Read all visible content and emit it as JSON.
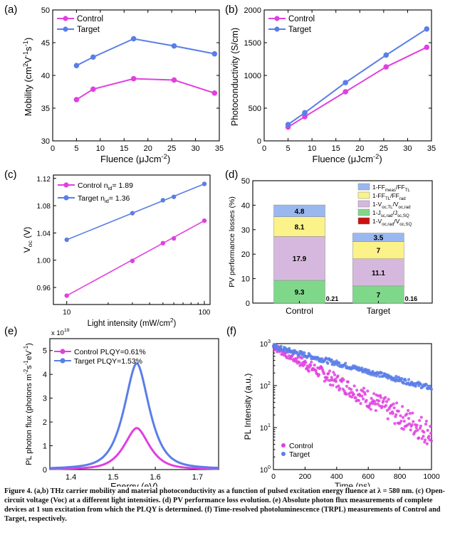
{
  "caption": "Figure 4. (a,b) THz carrier mobility and material photoconductivity as a function of pulsed excitation energy fluence at λ = 580 nm. (c) Open-circuit voltage (Voc) at a different light intensities. (d) PV performance loss evolution. (e) Absolute photon flux measurements of complete devices at 1 sun excitation from which the PLQY is determined. (f) Time-resolved photoluminescence (TRPL) measurements of Control and Target, respectively.",
  "colors": {
    "control": "#e040e0",
    "target": "#5a7ee8"
  },
  "chart_data": [
    {
      "panel": "(a)",
      "type": "line",
      "xlabel": "Fluence (μJcm⁻²)",
      "ylabel": "Mobility (cm²V⁻¹s⁻¹)",
      "xlim": [
        0,
        35
      ],
      "ylim": [
        30,
        50
      ],
      "xticks": [
        "0",
        "5",
        "10",
        "15",
        "20",
        "25",
        "30",
        "35"
      ],
      "yticks": [
        "30",
        "35",
        "40",
        "45",
        "50"
      ],
      "legend": "top-left",
      "series": [
        {
          "name": "Control",
          "x": [
            5,
            8.5,
            17,
            25.5,
            34
          ],
          "y": [
            36.3,
            37.9,
            39.5,
            39.3,
            37.3
          ]
        },
        {
          "name": "Target",
          "x": [
            5,
            8.5,
            17,
            25.5,
            34
          ],
          "y": [
            41.5,
            42.8,
            45.6,
            44.5,
            43.3
          ]
        }
      ]
    },
    {
      "panel": "(b)",
      "type": "line",
      "xlabel": "Fluence (μJcm⁻²)",
      "ylabel": "Photoconductivity (S/cm)",
      "xlim": [
        0,
        35
      ],
      "ylim": [
        0,
        2000
      ],
      "xticks": [
        "0",
        "5",
        "10",
        "15",
        "20",
        "25",
        "30",
        "35"
      ],
      "yticks": [
        "0",
        "500",
        "1000",
        "1500",
        "2000"
      ],
      "legend": "top-left",
      "series": [
        {
          "name": "Control",
          "x": [
            5,
            8.5,
            17,
            25.5,
            34
          ],
          "y": [
            210,
            370,
            750,
            1130,
            1430
          ]
        },
        {
          "name": "Target",
          "x": [
            5,
            8.5,
            17,
            25.5,
            34
          ],
          "y": [
            250,
            430,
            890,
            1310,
            1710
          ]
        }
      ]
    },
    {
      "panel": "(c)",
      "type": "line",
      "xlabel": "Light intensity (mW/cm²)",
      "ylabel": "Voc (V)",
      "xscale": "log",
      "xlim": [
        8,
        110
      ],
      "ylim": [
        0.935,
        1.125
      ],
      "xticks": [
        "10",
        "100"
      ],
      "yticks": [
        "0.96",
        "1.00",
        "1.04",
        "1.08",
        "1.12"
      ],
      "legend": "top-left",
      "series": [
        {
          "name": "Control",
          "label_extra": "n",
          "label_sub": "id",
          "label_value": "= 1.89",
          "x": [
            10,
            30,
            50,
            60,
            100
          ],
          "y": [
            0.948,
            0.999,
            1.025,
            1.032,
            1.058
          ],
          "fit": true
        },
        {
          "name": "Target",
          "label_extra": "n",
          "label_sub": "id",
          "label_value": "= 1.36",
          "x": [
            10,
            30,
            50,
            60,
            100
          ],
          "y": [
            1.03,
            1.069,
            1.088,
            1.093,
            1.112
          ],
          "fit": true
        }
      ]
    },
    {
      "panel": "(d)",
      "type": "bar",
      "ylabel": "PV performance losses (%)",
      "ylim": [
        0,
        50
      ],
      "yticks": [
        "0",
        "10",
        "20",
        "30",
        "40",
        "50"
      ],
      "categories": [
        "Control",
        "Target"
      ],
      "legend": "top-right",
      "series": [
        {
          "name": "1-Voc,rad/Voc,SQ",
          "color": "#cc1010",
          "values": [
            0.21,
            0.16
          ]
        },
        {
          "name": "1-Jsc,rad/Jsc,SQ",
          "color": "#7fd88a",
          "values": [
            9.3,
            7.0
          ]
        },
        {
          "name": "1-Voc,TL/Voc,rad",
          "color": "#d6b8de",
          "values": [
            17.9,
            11.1
          ]
        },
        {
          "name": "1-FFTL/FFrad",
          "color": "#fbf28a",
          "values": [
            8.1,
            7.0
          ]
        },
        {
          "name": "1-FFmeas/FFTL",
          "color": "#9ab8f0",
          "values": [
            4.8,
            3.5
          ]
        }
      ],
      "legend_items": [
        {
          "name": "1-FF",
          "sub": "meas",
          "rest": "/FF",
          "sub2": "TL",
          "color": "#9ab8f0"
        },
        {
          "name": "1-FF",
          "sub": "TL",
          "rest": "/FF",
          "sub2": "rad",
          "color": "#fbf28a"
        },
        {
          "name": "1-V",
          "sub": "oc,TL",
          "rest": "/V",
          "sub2": "oc,rad",
          "color": "#d6b8de"
        },
        {
          "name": "1-J",
          "sub": "sc,rad",
          "rest": "/J",
          "sub2": "sc,SQ",
          "color": "#7fd88a"
        },
        {
          "name": "1-V",
          "sub": "oc,rad",
          "rest": "/V",
          "sub2": "oc,SQ",
          "color": "#cc1010"
        }
      ]
    },
    {
      "panel": "(e)",
      "type": "line",
      "xlabel": "Energy (eV)",
      "ylabel": "PL photon flux (photons m⁻²s⁻¹eV⁻¹)",
      "exponent": "x 10",
      "exponent_power": "19",
      "xlim": [
        1.35,
        1.75
      ],
      "ylim": [
        0,
        5.5
      ],
      "xticks": [
        "1.4",
        "1.5",
        "1.6",
        "1.7"
      ],
      "yticks": [
        "0",
        "1",
        "2",
        "3",
        "4",
        "5"
      ],
      "legend": "top-left",
      "series": [
        {
          "name": "Control PLQY=0.61%",
          "peak_eV": 1.556,
          "peak": 1.75,
          "gamma": 0.035
        },
        {
          "name": "Target   PLQY=1.53%",
          "peak_eV": 1.556,
          "peak": 4.48,
          "gamma": 0.035
        }
      ]
    },
    {
      "panel": "(f)",
      "type": "scatter",
      "xlabel": "Time (ns)",
      "ylabel": "PL Intensity (a.u.)",
      "yscale": "log",
      "xlim": [
        0,
        1000
      ],
      "ylim": [
        1,
        1000
      ],
      "xticks": [
        "0",
        "200",
        "400",
        "600",
        "800",
        "1000"
      ],
      "yticks": [
        "10⁰",
        "10¹",
        "10²",
        "10³"
      ],
      "legend": "bottom-left",
      "series": [
        {
          "name": "Control",
          "y0": 850,
          "tau": 210,
          "y_end_floor": 15
        },
        {
          "name": "Target",
          "y0": 850,
          "tau": 440
        }
      ]
    }
  ]
}
